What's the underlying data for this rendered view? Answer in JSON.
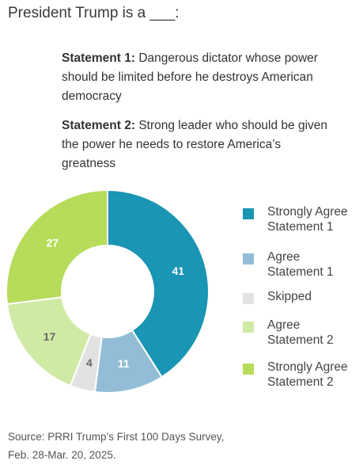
{
  "title": "President Trump is a ___:",
  "statements": [
    {
      "label": "Statement 1:",
      "text": " Dangerous dictator whose power should be limited before he destroys American democracy"
    },
    {
      "label": "Statement 2:",
      "text": " Strong leader who should be given the power he needs to restore America’s greatness"
    }
  ],
  "chart_data": {
    "type": "pie",
    "donut": true,
    "categories": [
      "Strongly Agree Statement 1",
      "Agree Statement 1",
      "Skipped",
      "Agree Statement 2",
      "Strongly Agree Statement 2"
    ],
    "values": [
      41,
      11,
      4,
      17,
      27
    ],
    "colors": [
      "#1a95b3",
      "#93bdd6",
      "#e2e2e2",
      "#cfeaa4",
      "#b6dc59"
    ],
    "label_colors": [
      "#ffffff",
      "#ffffff",
      "#666666",
      "#666666",
      "#ffffff"
    ],
    "legend_position": "right"
  },
  "legend": [
    {
      "label": "Strongly Agree\nStatement 1",
      "color": "#1a95b3"
    },
    {
      "label": "Agree\nStatement 1",
      "color": "#93bdd6"
    },
    {
      "label": "Skipped",
      "color": "#e2e2e2"
    },
    {
      "label": "Agree\nStatement 2",
      "color": "#cfeaa4"
    },
    {
      "label": "Strongly Agree\nStatement 2",
      "color": "#b6dc59"
    }
  ],
  "source": "Source: PRRI Trump’s First 100 Days Survey,\nFeb. 28-Mar. 20, 2025."
}
